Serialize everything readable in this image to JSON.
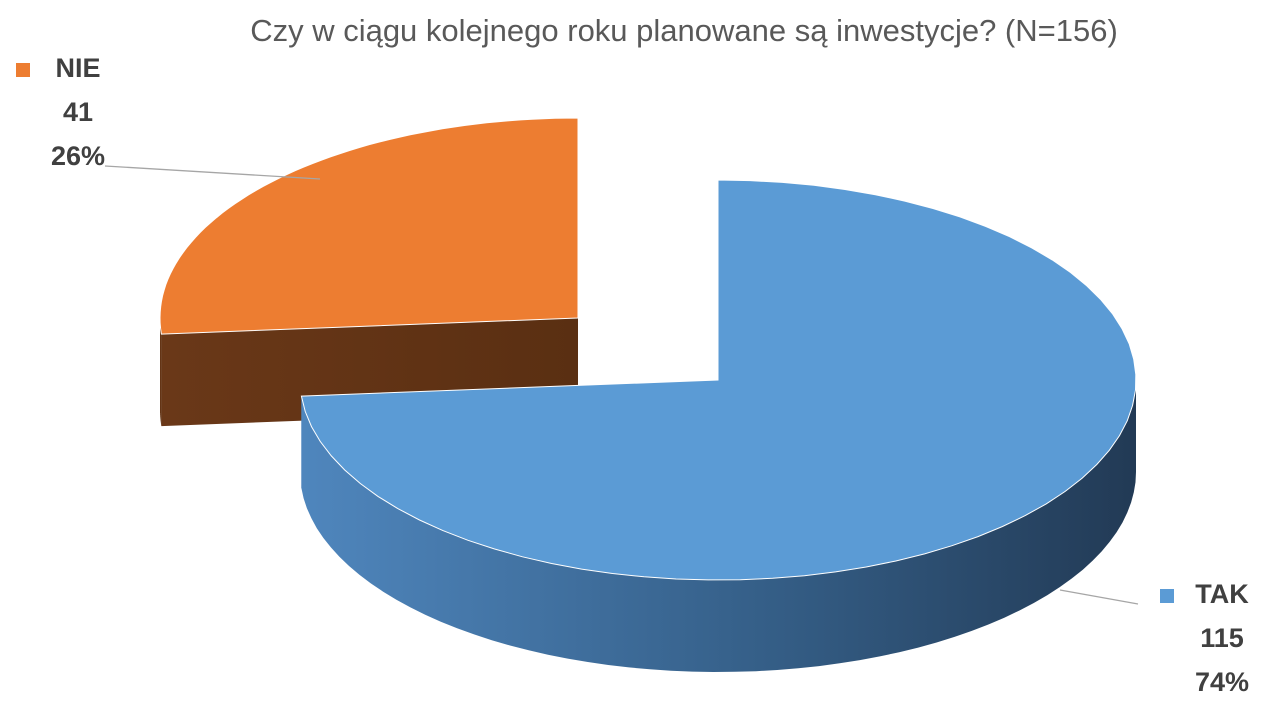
{
  "chart_data": {
    "type": "pie3d",
    "title": "Czy w ciągu kolejnego roku planowane są inwestycje? (N=156)",
    "categories": [
      "TAK",
      "NIE"
    ],
    "values": [
      115,
      41
    ],
    "percents": [
      74,
      26
    ],
    "percent_labels": [
      "74%",
      "26%"
    ],
    "colors": [
      "#5b9bd5",
      "#ed7d31"
    ]
  }
}
